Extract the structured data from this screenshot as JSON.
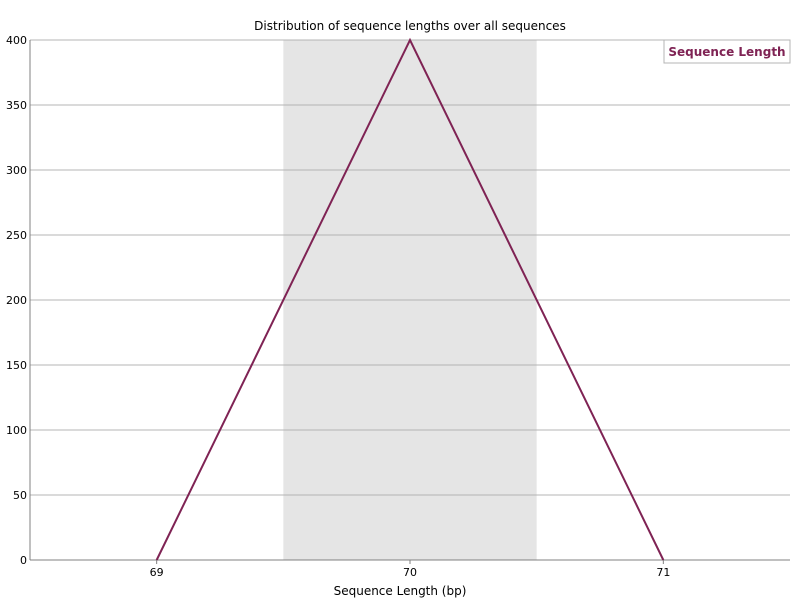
{
  "chart_data": {
    "type": "line",
    "title": "Distribution of sequence lengths over all sequences",
    "xlabel": "Sequence Length (bp)",
    "ylabel": "",
    "categories": [
      "69",
      "70",
      "71"
    ],
    "ylim": [
      0,
      400
    ],
    "yticks": [
      0,
      50,
      100,
      150,
      200,
      250,
      300,
      350,
      400
    ],
    "series": [
      {
        "name": "Sequence Length",
        "values": [
          0,
          400,
          0
        ]
      }
    ],
    "highlight_band_category": "70",
    "grid": true,
    "legend_position": "top-right",
    "colors": {
      "line": "#7f2354",
      "band": "#e5e5e5",
      "grid": "#b4b4b4",
      "axis": "#808080"
    }
  }
}
